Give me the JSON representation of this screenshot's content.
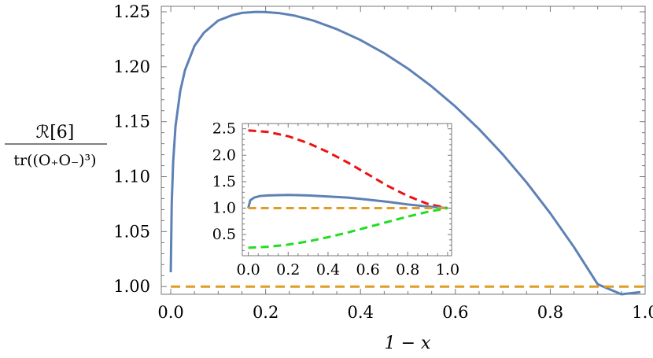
{
  "chart_data": [
    {
      "type": "line",
      "xlabel": "1 − x",
      "ylabel_numerator": "ℛ[6]",
      "ylabel_denominator": "tr((O₊O₋)³)",
      "xlim": [
        -0.02,
        1.0
      ],
      "ylim": [
        0.993,
        1.255
      ],
      "xticks": [
        0.0,
        0.2,
        0.4,
        0.6,
        0.8,
        1.0
      ],
      "xtick_labels": [
        "0.0",
        "0.2",
        "0.4",
        "0.6",
        "0.8",
        "1.0"
      ],
      "yticks": [
        1.0,
        1.05,
        1.1,
        1.15,
        1.2,
        1.25
      ],
      "ytick_labels": [
        "1.00",
        "1.05",
        "1.10",
        "1.15",
        "1.20",
        "1.25"
      ],
      "grid": false,
      "legend": "none",
      "series": [
        {
          "color": "#5e81b5",
          "dash": "solid",
          "x": [
            0.0,
            0.002,
            0.005,
            0.01,
            0.02,
            0.03,
            0.05,
            0.07,
            0.1,
            0.13,
            0.15,
            0.18,
            0.2,
            0.23,
            0.26,
            0.3,
            0.35,
            0.4,
            0.45,
            0.5,
            0.55,
            0.6,
            0.65,
            0.7,
            0.75,
            0.8,
            0.85,
            0.9,
            0.95,
            0.99
          ],
          "y": [
            1.013,
            1.075,
            1.113,
            1.146,
            1.178,
            1.197,
            1.219,
            1.231,
            1.242,
            1.247,
            1.249,
            1.2499,
            1.2497,
            1.2487,
            1.2466,
            1.2421,
            1.2342,
            1.2243,
            1.2123,
            1.1983,
            1.1821,
            1.1638,
            1.1432,
            1.1202,
            1.0948,
            1.0667,
            1.0359,
            1.0021,
            0.9654,
            0.995
          ]
        },
        {
          "color": "#e19c24",
          "dash": "dashed",
          "x": [
            0.0,
            1.0
          ],
          "y": [
            1.0,
            1.0
          ]
        }
      ]
    },
    {
      "type": "line",
      "role": "inset",
      "xlim": [
        -0.03,
        1.02
      ],
      "ylim": [
        0.1,
        2.6
      ],
      "xticks": [
        0.0,
        0.2,
        0.4,
        0.6,
        0.8,
        1.0
      ],
      "xtick_labels": [
        "0.0",
        "0.2",
        "0.4",
        "0.6",
        "0.8",
        "1.0"
      ],
      "yticks": [
        0.5,
        1.0,
        1.5,
        2.0,
        2.5
      ],
      "ytick_labels": [
        "0.5",
        "1.0",
        "1.5",
        "2.0",
        "2.5"
      ],
      "grid": false,
      "legend": "none",
      "series": [
        {
          "color": "#ee1111",
          "dash": "dashed",
          "x": [
            0.0,
            0.1,
            0.2,
            0.3,
            0.4,
            0.5,
            0.6,
            0.7,
            0.8,
            0.9,
            1.0
          ],
          "y": [
            2.47,
            2.44,
            2.36,
            2.23,
            2.06,
            1.86,
            1.64,
            1.42,
            1.23,
            1.08,
            1.0
          ]
        },
        {
          "color": "#5e81b5",
          "dash": "solid",
          "x": [
            0.0,
            0.01,
            0.03,
            0.06,
            0.1,
            0.2,
            0.3,
            0.4,
            0.5,
            0.6,
            0.7,
            0.8,
            0.9,
            1.0
          ],
          "y": [
            1.0,
            1.15,
            1.2,
            1.23,
            1.24,
            1.25,
            1.24,
            1.22,
            1.2,
            1.16,
            1.12,
            1.07,
            1.03,
            1.0
          ]
        },
        {
          "color": "#e19c24",
          "dash": "dashed",
          "x": [
            0.0,
            1.0
          ],
          "y": [
            1.0,
            1.0
          ]
        },
        {
          "color": "#22dd22",
          "dash": "dashed",
          "x": [
            0.0,
            0.1,
            0.2,
            0.3,
            0.4,
            0.5,
            0.6,
            0.7,
            0.8,
            0.9,
            1.0
          ],
          "y": [
            0.25,
            0.27,
            0.31,
            0.37,
            0.45,
            0.54,
            0.64,
            0.74,
            0.84,
            0.93,
            1.0
          ]
        }
      ]
    }
  ]
}
